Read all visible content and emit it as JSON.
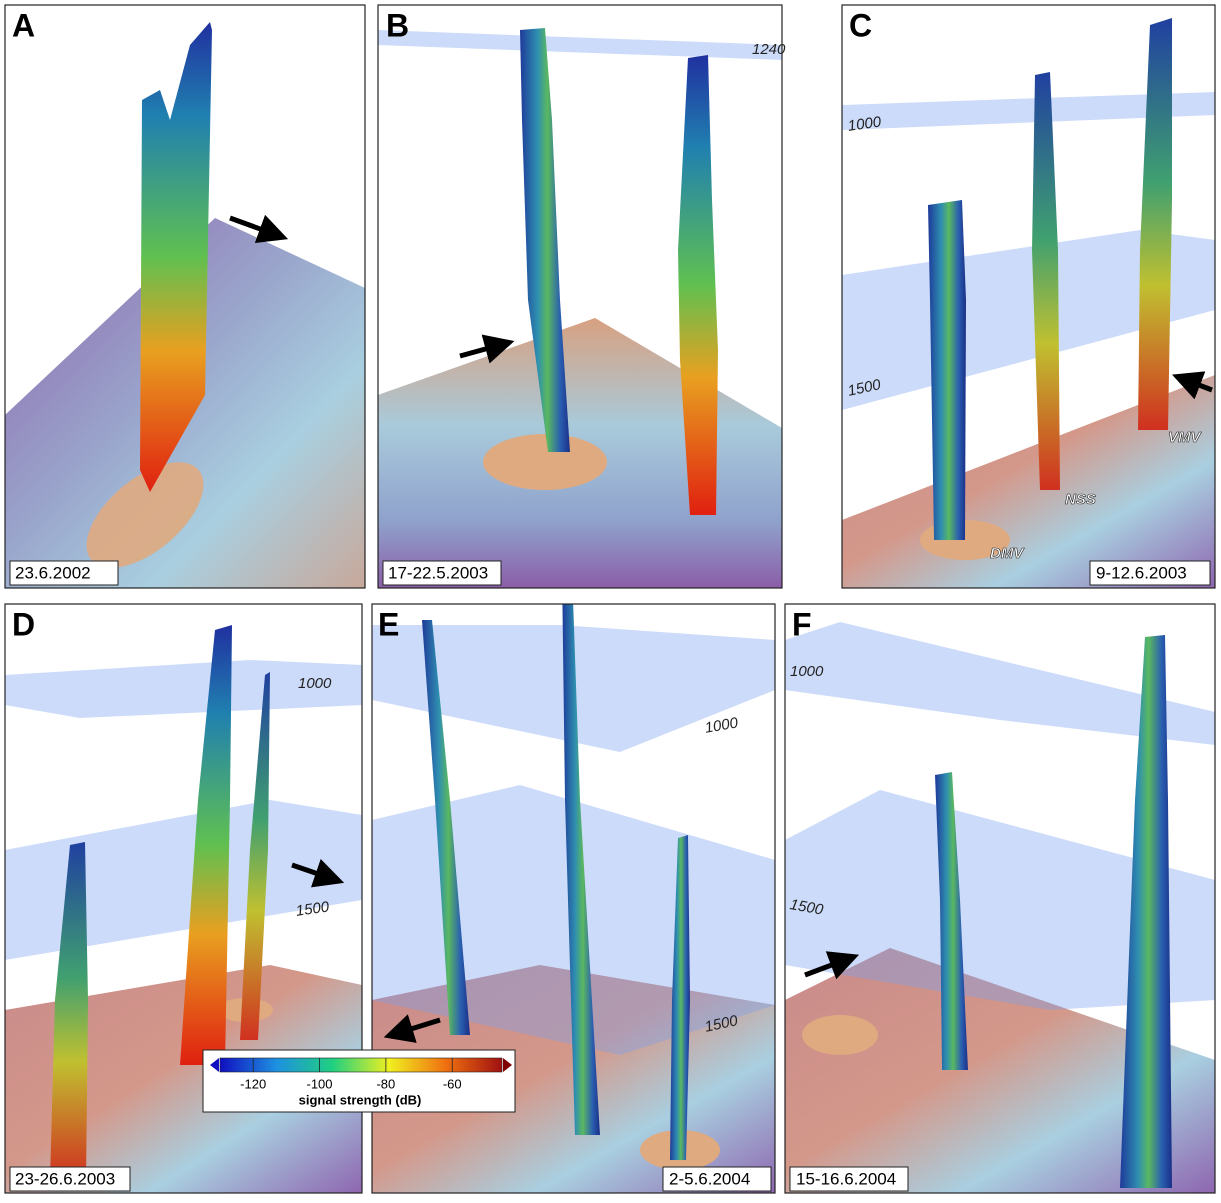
{
  "panels": [
    {
      "letter": "A",
      "date": "23.6.2002"
    },
    {
      "letter": "B",
      "date": "17-22.5.2003",
      "depth_labels": [
        "1240"
      ]
    },
    {
      "letter": "C",
      "date": "9-12.6.2003",
      "depth_labels": [
        "1000",
        "1500"
      ],
      "site_labels": [
        "VMV",
        "NSS",
        "DMV"
      ]
    },
    {
      "letter": "D",
      "date": "23-26.6.2003",
      "depth_labels": [
        "1000",
        "1500"
      ]
    },
    {
      "letter": "E",
      "date": "2-5.6.2004",
      "depth_labels": [
        "1000",
        "1500"
      ]
    },
    {
      "letter": "F",
      "date": "15-16.6.2004",
      "depth_labels": [
        "1000",
        "1500"
      ]
    }
  ],
  "colorbar": {
    "label": "signal strength (dB)",
    "lim": [
      -130,
      -45
    ],
    "ticks": [
      -120,
      -100,
      -80,
      -60
    ]
  }
}
